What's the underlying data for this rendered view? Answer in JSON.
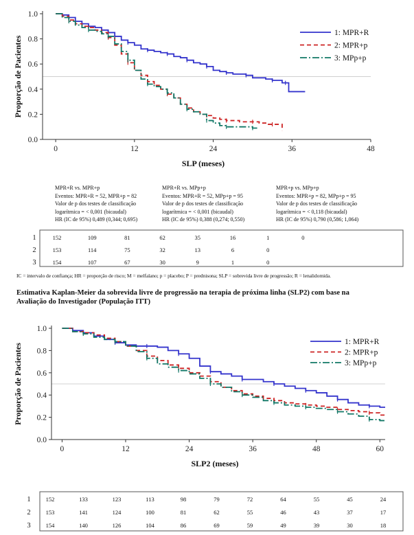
{
  "figure1": {
    "chart_data": {
      "type": "line",
      "ylabel": "Proporção de Pacientes",
      "xlabel": "SLP (meses)",
      "xlim": [
        -2,
        48
      ],
      "ylim": [
        0,
        1.0
      ],
      "xticks": [
        0,
        12,
        24,
        36,
        48
      ],
      "yticks": [
        0.0,
        0.2,
        0.4,
        0.6,
        0.8,
        1.0
      ],
      "reference_line_y": 0.5,
      "legend_position": "top-right",
      "series": [
        {
          "name": "1: MPR+R",
          "color": "#3333cc",
          "dash": "solid",
          "points": [
            [
              0,
              1.0
            ],
            [
              1,
              0.99
            ],
            [
              2,
              0.97
            ],
            [
              3,
              0.94
            ],
            [
              4,
              0.92
            ],
            [
              5,
              0.9
            ],
            [
              6,
              0.89
            ],
            [
              7,
              0.87
            ],
            [
              8,
              0.85
            ],
            [
              9,
              0.82
            ],
            [
              10,
              0.79
            ],
            [
              11,
              0.77
            ],
            [
              12,
              0.75
            ],
            [
              13,
              0.72
            ],
            [
              14,
              0.71
            ],
            [
              15,
              0.7
            ],
            [
              16,
              0.69
            ],
            [
              17,
              0.68
            ],
            [
              18,
              0.66
            ],
            [
              19,
              0.65
            ],
            [
              20,
              0.63
            ],
            [
              21,
              0.61
            ],
            [
              22,
              0.6
            ],
            [
              23,
              0.58
            ],
            [
              24,
              0.55
            ],
            [
              25,
              0.54
            ],
            [
              26,
              0.53
            ],
            [
              27,
              0.52
            ],
            [
              28,
              0.52
            ],
            [
              29,
              0.51
            ],
            [
              30,
              0.49
            ],
            [
              32,
              0.48
            ],
            [
              33,
              0.47
            ],
            [
              34,
              0.47
            ],
            [
              34.5,
              0.45
            ],
            [
              35,
              0.45
            ],
            [
              35.5,
              0.38
            ],
            [
              38,
              0.38
            ]
          ]
        },
        {
          "name": "2: MPR+p",
          "color": "#cc2222",
          "dash": "6,4",
          "points": [
            [
              0,
              1.0
            ],
            [
              1,
              0.98
            ],
            [
              2,
              0.95
            ],
            [
              3,
              0.92
            ],
            [
              4,
              0.9
            ],
            [
              5,
              0.89
            ],
            [
              6,
              0.87
            ],
            [
              7,
              0.85
            ],
            [
              8,
              0.81
            ],
            [
              9,
              0.75
            ],
            [
              10,
              0.68
            ],
            [
              11,
              0.61
            ],
            [
              12,
              0.55
            ],
            [
              13,
              0.51
            ],
            [
              14,
              0.46
            ],
            [
              15,
              0.43
            ],
            [
              16,
              0.4
            ],
            [
              17,
              0.36
            ],
            [
              18,
              0.33
            ],
            [
              19,
              0.28
            ],
            [
              20,
              0.25
            ],
            [
              21,
              0.22
            ],
            [
              22,
              0.2
            ],
            [
              23,
              0.19
            ],
            [
              24,
              0.17
            ],
            [
              25,
              0.16
            ],
            [
              26,
              0.15
            ],
            [
              27,
              0.15
            ],
            [
              28,
              0.14
            ],
            [
              30,
              0.14
            ],
            [
              31,
              0.13
            ],
            [
              32,
              0.12
            ],
            [
              33,
              0.12
            ],
            [
              34.5,
              0.12
            ],
            [
              34.5,
              0.07
            ]
          ]
        },
        {
          "name": "3: MPp+p",
          "color": "#117766",
          "dash": "10,3,2,3",
          "points": [
            [
              0,
              1.0
            ],
            [
              1,
              0.97
            ],
            [
              2,
              0.94
            ],
            [
              3,
              0.91
            ],
            [
              4,
              0.89
            ],
            [
              5,
              0.87
            ],
            [
              6,
              0.86
            ],
            [
              7,
              0.84
            ],
            [
              8,
              0.82
            ],
            [
              9,
              0.76
            ],
            [
              10,
              0.7
            ],
            [
              11,
              0.63
            ],
            [
              12,
              0.55
            ],
            [
              13,
              0.48
            ],
            [
              14,
              0.44
            ],
            [
              15,
              0.42
            ],
            [
              16,
              0.4
            ],
            [
              17,
              0.37
            ],
            [
              18,
              0.33
            ],
            [
              19,
              0.28
            ],
            [
              20,
              0.24
            ],
            [
              21,
              0.22
            ],
            [
              22,
              0.2
            ],
            [
              23,
              0.15
            ],
            [
              24,
              0.13
            ],
            [
              25,
              0.11
            ],
            [
              26,
              0.1
            ],
            [
              27,
              0.1
            ],
            [
              29,
              0.1
            ],
            [
              30,
              0.09
            ],
            [
              31,
              0.09
            ]
          ]
        }
      ]
    },
    "comparisons": [
      {
        "title": "MPR+R vs. MPR+p",
        "events": "Eventos: MPR+R = 52, MPR+p = 82",
        "pvalue_1": "Valor de p dos testes de classificação",
        "pvalue_2": "logarítmica = < 0,001 (bicaudal)",
        "hr": "HR (IC de 95%) 0,489 (0,344; 0,695)"
      },
      {
        "title": "MPR+R vs. MPp+p",
        "events": "Eventos: MPR+R = 52, MPp+p = 95",
        "pvalue_1": "Valor de p dos testes de classificação",
        "pvalue_2": "logarítmica = < 0,001 (bicaudal)",
        "hr": "HR (IC de 95%) 0,388 (0,274; 0,550)"
      },
      {
        "title": "MPR+p vs. MPp+p",
        "events": "Eventos: MPR+p = 82, MPp+p = 95",
        "pvalue_1": "Valor de p dos testes de classificação",
        "pvalue_2": "logarítmica = < 0,118 (bicaudal)",
        "hr": "HR (IC de 95%) 0,790 (0,586; 1,064)"
      }
    ],
    "risk_table": {
      "row_labels": [
        "1",
        "2",
        "3"
      ],
      "rows": [
        [
          "152",
          "109",
          "81",
          "62",
          "35",
          "16",
          "1",
          "0"
        ],
        [
          "153",
          "114",
          "75",
          "32",
          "13",
          "6",
          "0"
        ],
        [
          "154",
          "107",
          "67",
          "30",
          "9",
          "1",
          "0"
        ]
      ]
    }
  },
  "footnote": "IC = intervalo de confiança; HR = proporção de risco; M = melfalano; p = placebo; P = prednisona; SLP = sobrevida livre de progressão; R = lenalidomida.",
  "section_title_line1": "Estimativa Kaplan-Meier da sobrevida livre de progressão na terapia de próxima linha (SLP2) com base na",
  "section_title_line2": "Avaliação do Investigador (População ITT)",
  "figure2": {
    "chart_data": {
      "type": "line",
      "ylabel": "Proporção de Pacientes",
      "xlabel": "SLP2 (meses)",
      "xlim": [
        -2,
        61
      ],
      "ylim": [
        0,
        1.0
      ],
      "xticks": [
        0,
        12,
        24,
        36,
        48,
        60
      ],
      "yticks": [
        0.0,
        0.2,
        0.4,
        0.6,
        0.8,
        1.0
      ],
      "reference_line_y": 0.5,
      "legend_position": "top-right",
      "series": [
        {
          "name": "1: MPR+R",
          "color": "#3333cc",
          "dash": "solid",
          "points": [
            [
              0,
              1.0
            ],
            [
              2,
              0.98
            ],
            [
              4,
              0.96
            ],
            [
              6,
              0.93
            ],
            [
              8,
              0.9
            ],
            [
              10,
              0.87
            ],
            [
              12,
              0.85
            ],
            [
              14,
              0.84
            ],
            [
              16,
              0.84
            ],
            [
              18,
              0.83
            ],
            [
              20,
              0.8
            ],
            [
              22,
              0.77
            ],
            [
              24,
              0.73
            ],
            [
              26,
              0.66
            ],
            [
              28,
              0.61
            ],
            [
              30,
              0.59
            ],
            [
              32,
              0.57
            ],
            [
              34,
              0.54
            ],
            [
              36,
              0.54
            ],
            [
              38,
              0.52
            ],
            [
              40,
              0.5
            ],
            [
              42,
              0.48
            ],
            [
              44,
              0.46
            ],
            [
              46,
              0.44
            ],
            [
              48,
              0.42
            ],
            [
              50,
              0.39
            ],
            [
              52,
              0.36
            ],
            [
              54,
              0.33
            ],
            [
              56,
              0.31
            ],
            [
              58,
              0.3
            ],
            [
              60,
              0.29
            ],
            [
              61,
              0.29
            ]
          ]
        },
        {
          "name": "2: MPR+p",
          "color": "#cc2222",
          "dash": "6,4",
          "points": [
            [
              0,
              1.0
            ],
            [
              2,
              0.97
            ],
            [
              4,
              0.96
            ],
            [
              6,
              0.94
            ],
            [
              8,
              0.91
            ],
            [
              10,
              0.88
            ],
            [
              12,
              0.84
            ],
            [
              14,
              0.8
            ],
            [
              16,
              0.75
            ],
            [
              18,
              0.71
            ],
            [
              20,
              0.67
            ],
            [
              22,
              0.64
            ],
            [
              24,
              0.6
            ],
            [
              26,
              0.57
            ],
            [
              28,
              0.52
            ],
            [
              30,
              0.47
            ],
            [
              32,
              0.44
            ],
            [
              34,
              0.41
            ],
            [
              36,
              0.39
            ],
            [
              38,
              0.37
            ],
            [
              40,
              0.35
            ],
            [
              42,
              0.33
            ],
            [
              44,
              0.32
            ],
            [
              46,
              0.31
            ],
            [
              48,
              0.3
            ],
            [
              50,
              0.29
            ],
            [
              52,
              0.27
            ],
            [
              54,
              0.26
            ],
            [
              56,
              0.25
            ],
            [
              58,
              0.24
            ],
            [
              60,
              0.22
            ],
            [
              61,
              0.22
            ]
          ]
        },
        {
          "name": "3: MPp+p",
          "color": "#117766",
          "dash": "10,3,2,3",
          "points": [
            [
              0,
              1.0
            ],
            [
              2,
              0.97
            ],
            [
              4,
              0.95
            ],
            [
              6,
              0.92
            ],
            [
              8,
              0.9
            ],
            [
              10,
              0.88
            ],
            [
              12,
              0.84
            ],
            [
              14,
              0.79
            ],
            [
              16,
              0.73
            ],
            [
              18,
              0.68
            ],
            [
              20,
              0.65
            ],
            [
              22,
              0.62
            ],
            [
              24,
              0.59
            ],
            [
              26,
              0.55
            ],
            [
              28,
              0.5
            ],
            [
              30,
              0.47
            ],
            [
              32,
              0.43
            ],
            [
              34,
              0.4
            ],
            [
              36,
              0.38
            ],
            [
              38,
              0.35
            ],
            [
              40,
              0.33
            ],
            [
              42,
              0.31
            ],
            [
              44,
              0.3
            ],
            [
              46,
              0.29
            ],
            [
              48,
              0.28
            ],
            [
              50,
              0.27
            ],
            [
              52,
              0.25
            ],
            [
              54,
              0.23
            ],
            [
              56,
              0.21
            ],
            [
              58,
              0.18
            ],
            [
              60,
              0.17
            ],
            [
              61,
              0.17
            ]
          ]
        }
      ]
    },
    "risk_table": {
      "row_labels": [
        "1",
        "2",
        "3"
      ],
      "rows": [
        [
          "152",
          "133",
          "123",
          "113",
          "98",
          "79",
          "72",
          "64",
          "55",
          "45",
          "24"
        ],
        [
          "153",
          "141",
          "124",
          "100",
          "81",
          "62",
          "55",
          "46",
          "43",
          "37",
          "17"
        ],
        [
          "154",
          "140",
          "126",
          "104",
          "86",
          "69",
          "59",
          "49",
          "39",
          "30",
          "18"
        ]
      ]
    }
  }
}
